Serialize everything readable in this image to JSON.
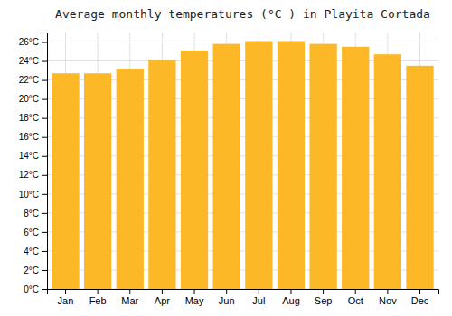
{
  "chart_data": {
    "type": "bar",
    "title": "Average monthly temperatures (°C ) in Playita Cortada",
    "categories": [
      "Jan",
      "Feb",
      "Mar",
      "Apr",
      "May",
      "Jun",
      "Jul",
      "Aug",
      "Sep",
      "Oct",
      "Nov",
      "Dec"
    ],
    "values": [
      22.7,
      22.7,
      23.2,
      24.1,
      25.1,
      25.8,
      26.1,
      26.1,
      25.8,
      25.5,
      24.7,
      23.5
    ],
    "color": "#FDB827",
    "ylim": [
      0,
      27
    ],
    "yticks": [
      {
        "value": 0,
        "label": "0°C"
      },
      {
        "value": 2,
        "label": "2°C"
      },
      {
        "value": 4,
        "label": "4°C"
      },
      {
        "value": 6,
        "label": "6°C"
      },
      {
        "value": 8,
        "label": "8°C"
      },
      {
        "value": 10,
        "label": "10°C"
      },
      {
        "value": 12,
        "label": "12°C"
      },
      {
        "value": 14,
        "label": "14°C"
      },
      {
        "value": 16,
        "label": "16°C"
      },
      {
        "value": 18,
        "label": "18°C"
      },
      {
        "value": 20,
        "label": "20°C"
      },
      {
        "value": 22,
        "label": "22°C"
      },
      {
        "value": 24,
        "label": "24°C"
      },
      {
        "value": 26,
        "label": "26°C"
      }
    ],
    "grid": true
  }
}
